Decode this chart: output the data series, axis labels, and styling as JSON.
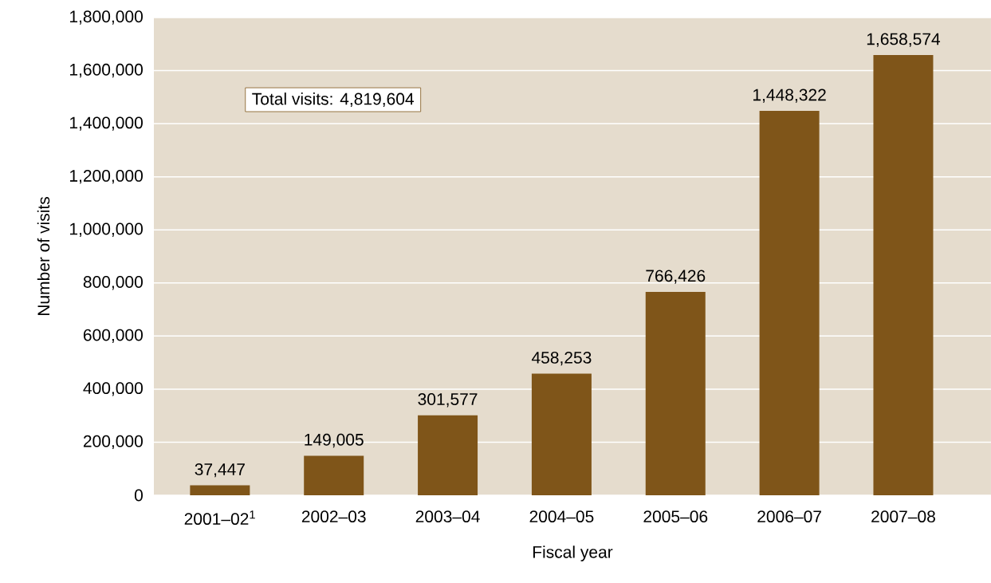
{
  "chart_data": {
    "type": "bar",
    "xlabel": "Fiscal year",
    "ylabel": "Number of visits",
    "categories": [
      "2001–02$^{1}$",
      "2002–03",
      "2003–04",
      "2004–05",
      "2005–06",
      "2006–07",
      "2007–08"
    ],
    "values": [
      37447,
      149005,
      301577,
      458253,
      766426,
      1448322,
      1658574
    ],
    "value_labels": [
      "37,447",
      "149,005",
      "301,577",
      "458,253",
      "766,426",
      "1,448,322",
      "1,658,574"
    ],
    "color": "#7f5519",
    "ylim": [
      0,
      1800000
    ],
    "yticks": [
      {
        "value": 0,
        "label": "0"
      },
      {
        "value": 200000,
        "label": "200,000"
      },
      {
        "value": 400000,
        "label": "400,000"
      },
      {
        "value": 600000,
        "label": "600,000"
      },
      {
        "value": 800000,
        "label": "800,000"
      },
      {
        "value": 1000000,
        "label": "1,000,000"
      },
      {
        "value": 1200000,
        "label": "1,200,000"
      },
      {
        "value": 1400000,
        "label": "1,400,000"
      },
      {
        "value": 1600000,
        "label": "1,600,000"
      },
      {
        "value": 1800000,
        "label": "1,800,000"
      }
    ],
    "grid": "y",
    "annotations": [
      "Total visits: 4,819,604"
    ]
  }
}
